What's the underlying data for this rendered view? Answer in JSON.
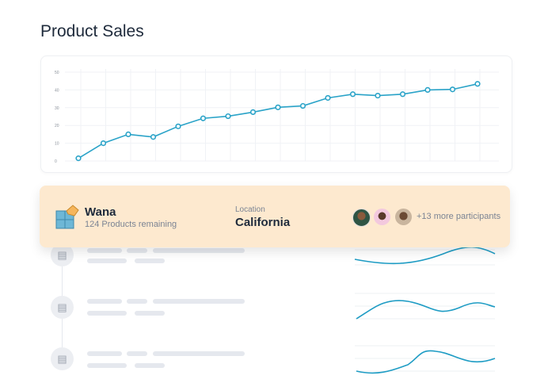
{
  "header": {
    "title": "Product Sales"
  },
  "chart_data": {
    "type": "line",
    "ylim": [
      0,
      50
    ],
    "yticks": [
      "0",
      "10",
      "20",
      "30",
      "40",
      "50"
    ],
    "grid": true,
    "color": "#2aa3c8",
    "values": [
      1.5,
      10,
      15,
      13.5,
      19.5,
      24,
      25.2,
      27.5,
      30.2,
      31,
      35.5,
      37.6,
      36.8,
      37.6,
      40,
      40.3,
      43.4
    ]
  },
  "banner": {
    "name": "Wana",
    "subtitle": "124 Products remaining",
    "location_label": "Location",
    "location": "California",
    "participants_more": "+13 more participants",
    "bg": "#fde9cf"
  }
}
